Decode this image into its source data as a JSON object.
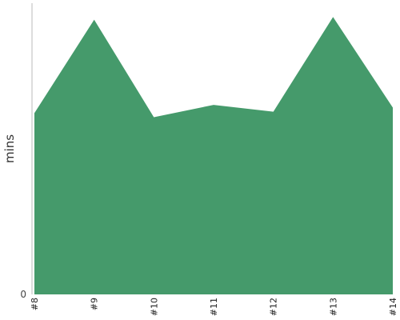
{
  "chart_data": {
    "type": "area",
    "categories": [
      "#8",
      "#9",
      "#10",
      "#11",
      "#12",
      "#13",
      "#14"
    ],
    "values": [
      66,
      100,
      64.5,
      69,
      66.5,
      101,
      68
    ],
    "ylabel": "mins",
    "xlabel": "",
    "title": "",
    "ylim": [
      0,
      106
    ],
    "y_tick_labels": [
      "0"
    ],
    "grid": false,
    "legend": "none",
    "color": "#459a6b"
  }
}
